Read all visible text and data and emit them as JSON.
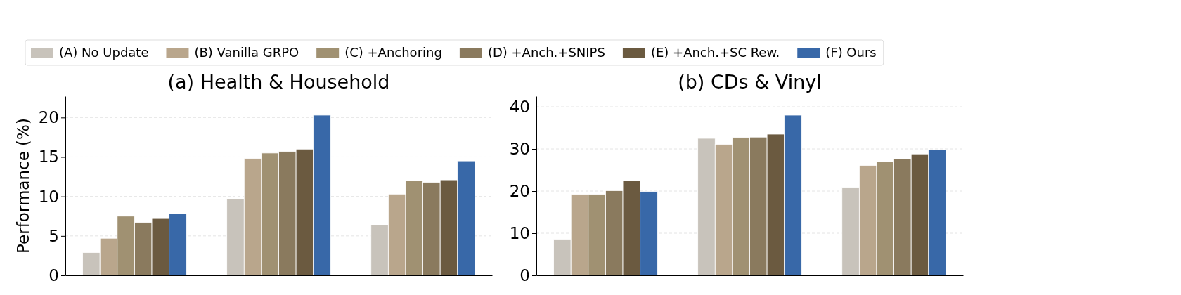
{
  "chart_data": [
    {
      "type": "bar",
      "title": "(a) Health & Household",
      "ylabel": "Performance (%)",
      "categories": [
        null,
        null,
        null
      ],
      "legend": "top",
      "grid": "y",
      "ylim": [
        0,
        22.7
      ],
      "yticks": [
        0,
        5,
        10,
        15,
        20
      ],
      "series": [
        {
          "name": "(A) No Update",
          "color": "#c8c3bb",
          "values": [
            2.9,
            9.7,
            6.4
          ]
        },
        {
          "name": "(B) Vanilla GRPO",
          "color": "#b9a68c",
          "values": [
            4.7,
            14.8,
            10.3
          ]
        },
        {
          "name": "(C) +Anchoring",
          "color": "#a09172",
          "values": [
            7.5,
            15.5,
            12.0
          ]
        },
        {
          "name": "(D) +Anch.+SNIPS",
          "color": "#8a7a5e",
          "values": [
            6.7,
            15.7,
            11.8
          ]
        },
        {
          "name": "(E) +Anch.+SC Rew.",
          "color": "#6b5a40",
          "values": [
            7.2,
            16.0,
            12.1
          ]
        },
        {
          "name": "(F) Ours",
          "color": "#3868a8",
          "values": [
            7.8,
            20.3,
            14.5
          ]
        }
      ]
    },
    {
      "type": "bar",
      "title": "(b) CDs & Vinyl",
      "categories": [
        null,
        null,
        null
      ],
      "grid": "y",
      "ylim": [
        0,
        42.5
      ],
      "yticks": [
        0,
        10,
        20,
        30,
        40
      ],
      "series": [
        {
          "color": "#c8c3bb",
          "values": [
            8.6,
            32.5,
            20.9
          ]
        },
        {
          "color": "#b9a68c",
          "values": [
            19.2,
            31.1,
            26.1
          ]
        },
        {
          "color": "#a09172",
          "values": [
            19.2,
            32.7,
            27.0
          ]
        },
        {
          "color": "#8a7a5e",
          "values": [
            20.1,
            32.8,
            27.6
          ]
        },
        {
          "color": "#6b5a40",
          "values": [
            22.4,
            33.5,
            28.8
          ]
        },
        {
          "color": "#3868a8",
          "values": [
            19.9,
            38.0,
            29.8
          ]
        }
      ]
    }
  ]
}
